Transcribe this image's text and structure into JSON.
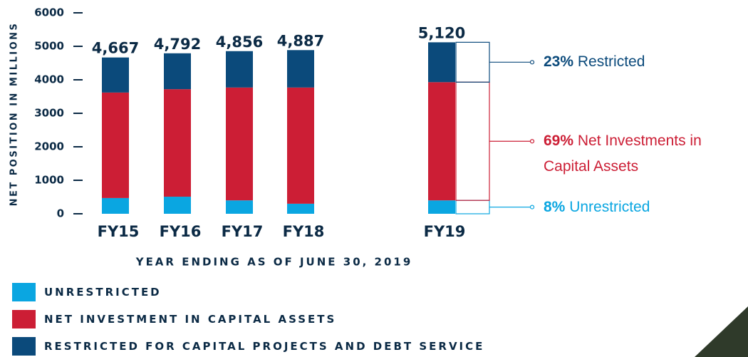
{
  "chart_data": {
    "type": "bar",
    "stacked": true,
    "y_axis_label": "NET POSITION IN MILLIONS",
    "x_axis_label": "YEAR ENDING AS OF JUNE 30, 2019",
    "categories": [
      "FY15",
      "FY16",
      "FY17",
      "FY18",
      "FY19"
    ],
    "series": [
      {
        "name": "UNRESTRICTED",
        "color": "#0aa6e1",
        "values": [
          470,
          510,
          400,
          300,
          400
        ]
      },
      {
        "name": "NET INVESTMENT IN CAPITAL ASSETS",
        "color": "#cc1e35",
        "values": [
          3150,
          3210,
          3370,
          3470,
          3530
        ]
      },
      {
        "name": "RESTRICTED FOR CAPITAL PROJECTS AND DEBT SERVICE",
        "color": "#0b4a7b",
        "values": [
          1047,
          1072,
          1086,
          1117,
          1190
        ]
      }
    ],
    "totals": [
      4667,
      4792,
      4856,
      4887,
      5120
    ],
    "total_labels": [
      "4,667",
      "4,792",
      "4,856",
      "4,887",
      "5,120"
    ],
    "annotations": [
      {
        "pct": "8%",
        "text": "Unrestricted"
      },
      {
        "pct": "69%",
        "text": "Net Investments in Capital Assets"
      },
      {
        "pct": "23%",
        "text": "Restricted"
      }
    ],
    "ylim": [
      0,
      6000
    ],
    "yticks": [
      0,
      1000,
      2000,
      3000,
      4000,
      5000,
      6000
    ]
  }
}
